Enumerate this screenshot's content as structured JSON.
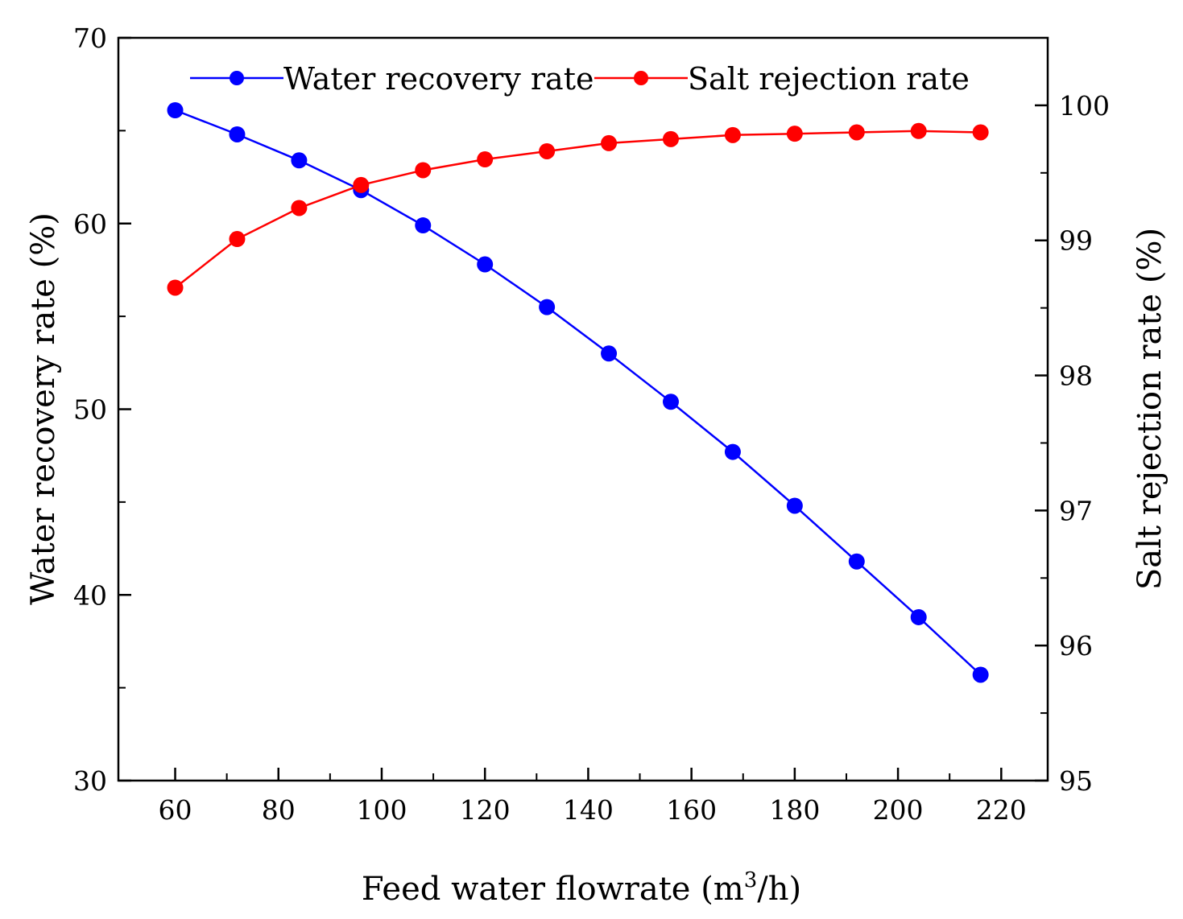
{
  "chart_data": {
    "type": "line",
    "title": "",
    "xlabel": "Feed water flowrate (m",
    "xlabel_superscript": "3",
    "xlabel_suffix": "/h)",
    "ylabel_left": "Water recovery rate (%)",
    "ylabel_right": "Salt rejection rate (%)",
    "xlim": [
      49,
      229
    ],
    "ylim_left": [
      30,
      70
    ],
    "ylim_right": [
      95,
      100.5
    ],
    "x_ticks": [
      60,
      80,
      100,
      120,
      140,
      160,
      180,
      200,
      220
    ],
    "x_tick_labels": [
      "60",
      "80",
      "100",
      "120",
      "140",
      "160",
      "180",
      "200",
      "220"
    ],
    "y_left_ticks": [
      30,
      40,
      50,
      60,
      70
    ],
    "y_left_tick_labels": [
      "30",
      "40",
      "50",
      "60",
      "70"
    ],
    "y_right_ticks": [
      95,
      96,
      97,
      98,
      99,
      100
    ],
    "y_right_tick_labels": [
      "95",
      "96",
      "97",
      "98",
      "99",
      "100"
    ],
    "grid": false,
    "legend_position": "top",
    "x": [
      60,
      72,
      84,
      96,
      108,
      120,
      132,
      144,
      156,
      168,
      180,
      192,
      204,
      216
    ],
    "series": [
      {
        "name": "Water recovery rate",
        "axis": "left",
        "color": "#0000ff",
        "values": [
          66.1,
          64.8,
          63.4,
          61.8,
          59.9,
          57.8,
          55.5,
          53.0,
          50.4,
          47.7,
          44.8,
          41.8,
          38.8,
          35.7
        ]
      },
      {
        "name": "Salt rejection rate",
        "axis": "right",
        "color": "#ff0000",
        "values": [
          98.65,
          99.01,
          99.24,
          99.41,
          99.52,
          99.6,
          99.66,
          99.72,
          99.75,
          99.78,
          99.79,
          99.8,
          99.81,
          99.8
        ]
      }
    ]
  }
}
